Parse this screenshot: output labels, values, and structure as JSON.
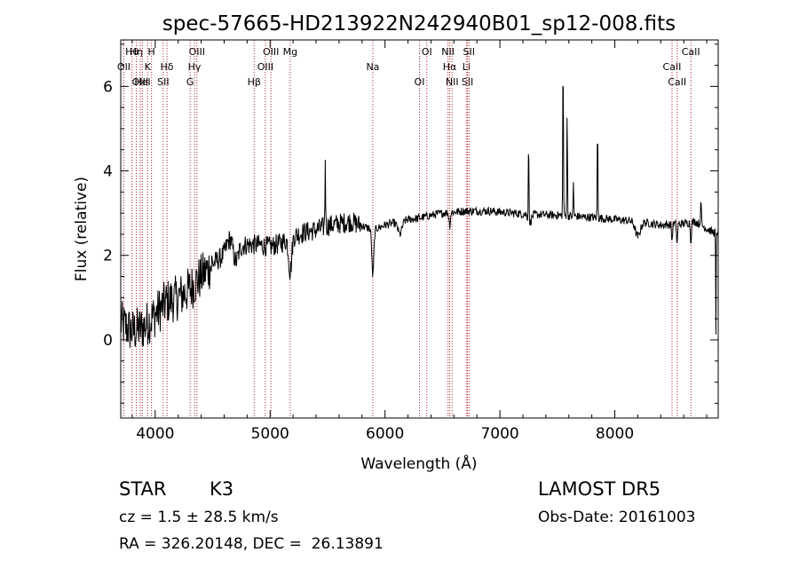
{
  "chart_data": {
    "type": "line",
    "title": "spec-57665-HD213922N242940B01_sp12-008.fits",
    "xlabel": "Wavelength (Å)",
    "ylabel": "Flux (relative)",
    "xlim": [
      3700,
      8900
    ],
    "ylim": [
      -1.85,
      7.1
    ],
    "xticks": [
      4000,
      5000,
      6000,
      7000,
      8000
    ],
    "yticks": [
      0,
      2,
      4,
      6
    ],
    "line_color": "#000000",
    "marker_color": "#b22222",
    "grid": false,
    "legend": "none",
    "spectral_lines": [
      {
        "label": "Hθ",
        "x": 3798
      },
      {
        "label": "OII",
        "x": 3727
      },
      {
        "label": "OIII",
        "x": 3869
      },
      {
        "label": "Hη",
        "x": 3835
      },
      {
        "label": "K",
        "x": 3934
      },
      {
        "label": "HeI",
        "x": 3889
      },
      {
        "label": "H",
        "x": 3968
      },
      {
        "label": "Hδ",
        "x": 4102
      },
      {
        "label": "SII",
        "x": 4070
      },
      {
        "label": "OIII",
        "x": 4363
      },
      {
        "label": "Hγ",
        "x": 4341
      },
      {
        "label": "G",
        "x": 4304
      },
      {
        "label": "OIII",
        "x": 5007
      },
      {
        "label": "OIII",
        "x": 4959
      },
      {
        "label": "Hβ",
        "x": 4861
      },
      {
        "label": "Mg",
        "x": 5175
      },
      {
        "label": "Na",
        "x": 5894
      },
      {
        "label": "OI",
        "x": 6300
      },
      {
        "label": "OI",
        "x": 6364
      },
      {
        "label": "Hα",
        "x": 6563
      },
      {
        "label": "SII",
        "x": 6717
      },
      {
        "label": "NII",
        "x": 6548
      },
      {
        "label": "Li",
        "x": 6708
      },
      {
        "label": "NII",
        "x": 6584
      },
      {
        "label": "SII",
        "x": 6731
      },
      {
        "label": "CaII",
        "x": 8498
      },
      {
        "label": "CaII",
        "x": 8542
      },
      {
        "label": "CaII",
        "x": 8662
      }
    ],
    "continuum": [
      [
        3700,
        0.4
      ],
      [
        3800,
        0.2
      ],
      [
        3900,
        0.3
      ],
      [
        4000,
        0.6
      ],
      [
        4100,
        0.9
      ],
      [
        4200,
        1.0
      ],
      [
        4300,
        1.2
      ],
      [
        4400,
        1.5
      ],
      [
        4500,
        1.8
      ],
      [
        4600,
        2.0
      ],
      [
        4700,
        2.2
      ],
      [
        4800,
        2.25
      ],
      [
        4900,
        2.25
      ],
      [
        5000,
        2.2
      ],
      [
        5100,
        2.3
      ],
      [
        5200,
        2.45
      ],
      [
        5300,
        2.55
      ],
      [
        5400,
        2.6
      ],
      [
        5500,
        2.7
      ],
      [
        5600,
        2.75
      ],
      [
        5700,
        2.8
      ],
      [
        5800,
        2.7
      ],
      [
        5900,
        2.6
      ],
      [
        6000,
        2.72
      ],
      [
        6100,
        2.78
      ],
      [
        6200,
        2.85
      ],
      [
        6300,
        2.88
      ],
      [
        6400,
        2.95
      ],
      [
        6500,
        3.0
      ],
      [
        6700,
        3.05
      ],
      [
        6900,
        3.05
      ],
      [
        7200,
        2.98
      ],
      [
        7500,
        2.95
      ],
      [
        7800,
        2.9
      ],
      [
        8000,
        2.85
      ],
      [
        8200,
        2.8
      ],
      [
        8400,
        2.72
      ],
      [
        8600,
        2.75
      ],
      [
        8700,
        2.8
      ],
      [
        8850,
        2.55
      ],
      [
        8900,
        2.55
      ]
    ],
    "features": [
      {
        "x": 4650,
        "dy": 0.3,
        "w": 40
      },
      {
        "x": 4700,
        "dy": -0.4,
        "w": 30
      },
      {
        "x": 5175,
        "dy": -0.8,
        "w": 18
      },
      {
        "x": 5480,
        "dy": 1.6,
        "w": 4
      },
      {
        "x": 5894,
        "dy": -1.1,
        "w": 12
      },
      {
        "x": 6130,
        "dy": -0.3,
        "w": 25
      },
      {
        "x": 6563,
        "dy": -0.3,
        "w": 8
      },
      {
        "x": 7250,
        "dy": 2.0,
        "w": 4
      },
      {
        "x": 7260,
        "dy": -0.2,
        "w": 20
      },
      {
        "x": 7550,
        "dy": 3.9,
        "w": 4
      },
      {
        "x": 7585,
        "dy": 2.5,
        "w": 4
      },
      {
        "x": 7640,
        "dy": 0.8,
        "w": 4
      },
      {
        "x": 7850,
        "dy": 2.2,
        "w": 4
      },
      {
        "x": 8200,
        "dy": -0.35,
        "w": 30
      },
      {
        "x": 8498,
        "dy": -0.4,
        "w": 6
      },
      {
        "x": 8542,
        "dy": -0.5,
        "w": 6
      },
      {
        "x": 8662,
        "dy": -0.45,
        "w": 6
      },
      {
        "x": 8750,
        "dy": 0.5,
        "w": 6
      },
      {
        "x": 8880,
        "dy": -2.5,
        "w": 3
      }
    ]
  },
  "info": {
    "class_label": "STAR",
    "subclass": "K3",
    "survey": "LAMOST DR5",
    "cz": "cz = 1.5 ± 28.5 km/s",
    "obs_date": "Obs-Date: 20161003",
    "coords": "RA = 326.20148, DEC =  26.13891"
  }
}
